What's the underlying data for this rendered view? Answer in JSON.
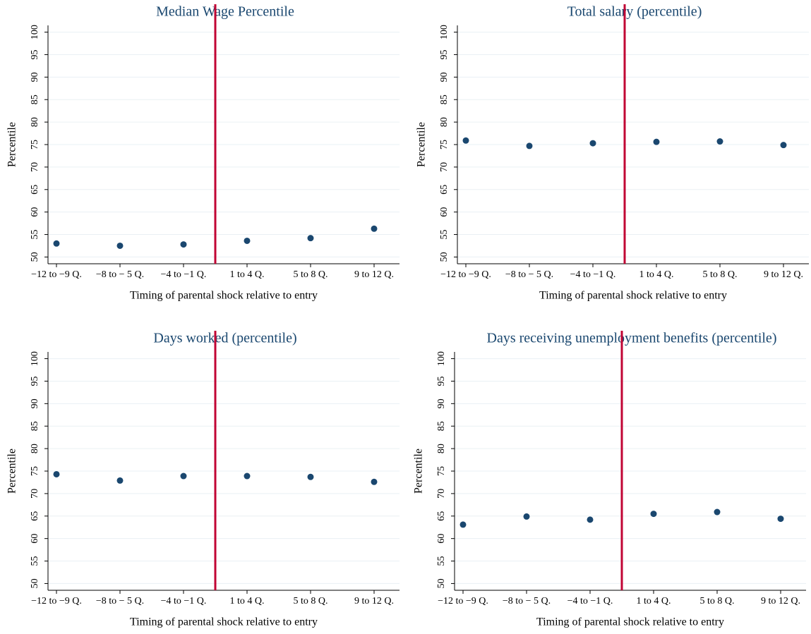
{
  "chart_data": [
    {
      "type": "scatter",
      "title": "Median Wage Percentile",
      "y_label": "Percentile",
      "x_label": "Timing of parental shock relative to entry",
      "categories": [
        "−12 to −9 Q.",
        "−8 to − 5 Q.",
        "−4 to −1 Q.",
        "1 to 4 Q.",
        "5 to 8 Q.",
        "9 to 12 Q."
      ],
      "values": [
        53.0,
        52.5,
        52.8,
        53.6,
        54.2,
        56.3
      ],
      "color": "#1a476f",
      "ylim": [
        48.5,
        101.5
      ],
      "yticks": [
        50,
        55,
        60,
        65,
        70,
        75,
        80,
        85,
        90,
        95,
        100
      ],
      "grid": true
    },
    {
      "type": "scatter",
      "title": "Total salary (percentile)",
      "y_label": "Percentile",
      "x_label": "Timing of parental shock relative to entry",
      "categories": [
        "−12 to −9 Q.",
        "−8 to − 5 Q.",
        "−4 to −1 Q.",
        "1 to 4 Q.",
        "5 to 8 Q.",
        "9 to 12 Q."
      ],
      "values": [
        75.9,
        74.7,
        75.3,
        75.6,
        75.7,
        74.9
      ],
      "color": "#1a476f",
      "ylim": [
        48.5,
        101.5
      ],
      "yticks": [
        50,
        55,
        60,
        65,
        70,
        75,
        80,
        85,
        90,
        95,
        100
      ],
      "grid": true
    },
    {
      "type": "scatter",
      "title": "Days worked (percentile)",
      "y_label": "Percentile",
      "x_label": "Timing of parental shock relative to entry",
      "categories": [
        "−12 to −9 Q.",
        "−8 to − 5 Q.",
        "−4 to −1 Q.",
        "1 to 4 Q.",
        "5 to 8 Q.",
        "9 to 12 Q."
      ],
      "values": [
        74.3,
        72.9,
        73.9,
        73.9,
        73.7,
        72.6
      ],
      "color": "#1a476f",
      "ylim": [
        48.5,
        101.5
      ],
      "yticks": [
        50,
        55,
        60,
        65,
        70,
        75,
        80,
        85,
        90,
        95,
        100
      ],
      "grid": true
    },
    {
      "type": "scatter",
      "title": "Days receiving unemployment benefits (percentile)",
      "y_label": "Percentile",
      "x_label": "Timing of parental shock relative to entry",
      "categories": [
        "−12 to −9 Q.",
        "−8 to − 5 Q.",
        "−4 to −1 Q.",
        "1 to 4 Q.",
        "5 to 8 Q.",
        "9 to 12 Q."
      ],
      "values": [
        63.1,
        64.9,
        64.2,
        65.5,
        65.9,
        64.4
      ],
      "color": "#1a476f",
      "ylim": [
        48.5,
        101.5
      ],
      "yticks": [
        50,
        55,
        60,
        65,
        70,
        75,
        80,
        85,
        90,
        95,
        100
      ],
      "grid": true
    }
  ]
}
